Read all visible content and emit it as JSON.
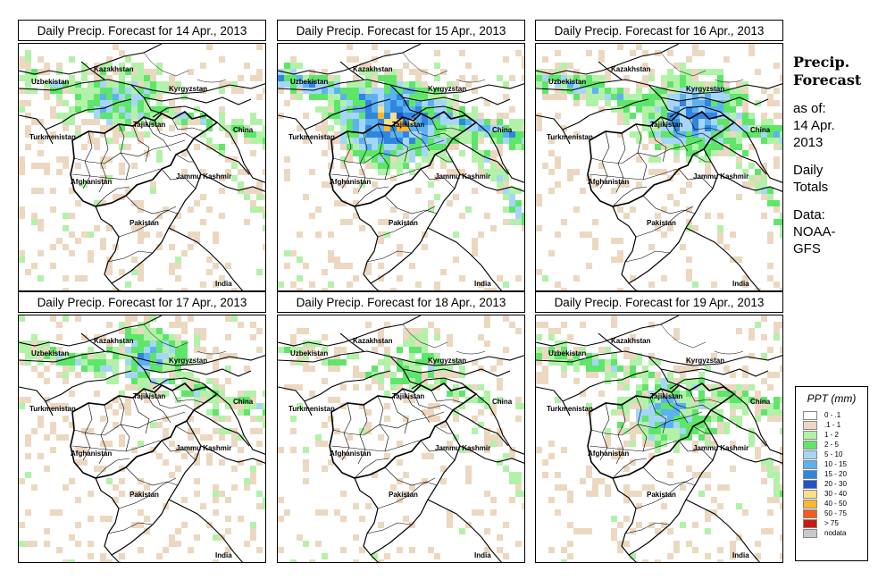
{
  "panels": [
    {
      "title": "Daily Precip. Forecast for  14 Apr., 2013",
      "seed": 11,
      "center": [
        0.38,
        0.22
      ],
      "spread": 0.3,
      "intensity": 0.55
    },
    {
      "title": "Daily Precip. Forecast for  15 Apr., 2013",
      "seed": 23,
      "center": [
        0.45,
        0.3
      ],
      "spread": 0.34,
      "intensity": 1.0
    },
    {
      "title": "Daily Precip. Forecast for  16 Apr., 2013",
      "seed": 37,
      "center": [
        0.62,
        0.28
      ],
      "spread": 0.32,
      "intensity": 0.8
    },
    {
      "title": "Daily Precip. Forecast for  17 Apr., 2013",
      "seed": 41,
      "center": [
        0.5,
        0.15
      ],
      "spread": 0.26,
      "intensity": 0.6
    },
    {
      "title": "Daily Precip. Forecast for  18 Apr., 2013",
      "seed": 53,
      "center": [
        0.55,
        0.2
      ],
      "spread": 0.25,
      "intensity": 0.4
    },
    {
      "title": "Daily Precip. Forecast for  19 Apr., 2013",
      "seed": 67,
      "center": [
        0.52,
        0.38
      ],
      "spread": 0.3,
      "intensity": 0.6
    }
  ],
  "map_labels": {
    "kazakhstan": "Kazakhstan",
    "uzbekistan": "Uzbekistan",
    "kyrgyzstan": "Kyrgyzstan",
    "tajikistan": "Tajikistan",
    "turkmenistan": "Turkmenistan",
    "china": "China",
    "afghanistan": "Afghanistan",
    "jammu_kashmir": "Jammu Kashmir",
    "pakistan": "Pakistan",
    "india": "India"
  },
  "side": {
    "title_1": "Precip.",
    "title_2": "Forecast",
    "asof_1": "as of:",
    "asof_2": "14 Apr.",
    "asof_3": "2013",
    "daily_1": "Daily",
    "daily_2": "Totals",
    "data_1": "Data:",
    "data_2": "NOAA-",
    "data_3": "GFS"
  },
  "legend": {
    "title": "PPT (mm)",
    "items": [
      {
        "label": "0 - .1",
        "color": "#ffffff"
      },
      {
        "label": ".1 - 1",
        "color": "#ecd8c0"
      },
      {
        "label": "1 - 2",
        "color": "#b2f2a8"
      },
      {
        "label": "2 - 5",
        "color": "#5ee66a"
      },
      {
        "label": "5 - 10",
        "color": "#a6d6f7"
      },
      {
        "label": "10 - 15",
        "color": "#5cb2f0"
      },
      {
        "label": "15 - 20",
        "color": "#2f86e2"
      },
      {
        "label": "20 - 30",
        "color": "#1f54c8"
      },
      {
        "label": "30 - 40",
        "color": "#f7e08a"
      },
      {
        "label": "40 - 50",
        "color": "#ffb62e"
      },
      {
        "label": "50 - 75",
        "color": "#f25c1e"
      },
      {
        "label": "> 75",
        "color": "#c81812"
      },
      {
        "label": "nodata",
        "color": "#c8c8c8"
      }
    ]
  }
}
